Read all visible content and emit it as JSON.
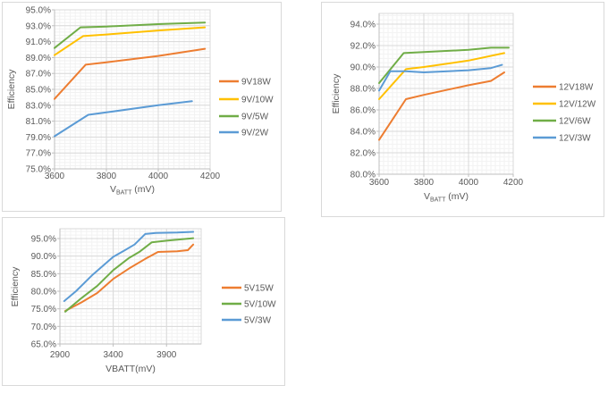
{
  "colors": {
    "orange": "#ED7D31",
    "gold": "#FFC000",
    "green": "#70AD47",
    "blue": "#5B9BD5",
    "grid_major": "#D9D9D9",
    "grid_minor": "#F2F2F2",
    "axis_line": "#BFBFBF",
    "text": "#595959",
    "panel_border": "#D9D9D9"
  },
  "chart_data": [
    {
      "type": "line",
      "id": "9v-efficiency",
      "ylabel": "Efficiency",
      "xlabel": {
        "pre": "V",
        "sub": "BATT",
        "post": " (mV)"
      },
      "xlim": [
        3600,
        4200
      ],
      "ylim": [
        75,
        95
      ],
      "x_ticks": [
        3600,
        3800,
        4000,
        4200
      ],
      "x_tick_labels": [
        "3600",
        "3800",
        "4000",
        "4200"
      ],
      "y_ticks": [
        95,
        93,
        91,
        89,
        87,
        85,
        83,
        81,
        79,
        77,
        75
      ],
      "y_tick_labels": [
        "95.0%",
        "93.0%",
        "91.0%",
        "89.0%",
        "87.0%",
        "85.0%",
        "83.0%",
        "81.0%",
        "79.0%",
        "77.0%",
        "75.0%"
      ],
      "grid": true,
      "legend_position": "right",
      "series": [
        {
          "name": "9V18W",
          "color": "#ED7D31",
          "points": [
            [
              3600,
              83.8
            ],
            [
              3720,
              88.1
            ],
            [
              3800,
              88.4
            ],
            [
              4000,
              89.2
            ],
            [
              4180,
              90.1
            ]
          ]
        },
        {
          "name": "9V/10W",
          "color": "#FFC000",
          "points": [
            [
              3600,
              89.3
            ],
            [
              3710,
              91.7
            ],
            [
              3800,
              91.9
            ],
            [
              4000,
              92.4
            ],
            [
              4180,
              92.8
            ]
          ]
        },
        {
          "name": "9V/5W",
          "color": "#70AD47",
          "points": [
            [
              3600,
              90.2
            ],
            [
              3700,
              92.8
            ],
            [
              3800,
              92.9
            ],
            [
              4000,
              93.2
            ],
            [
              4180,
              93.4
            ]
          ]
        },
        {
          "name": "9V/2W",
          "color": "#5B9BD5",
          "points": [
            [
              3600,
              79.1
            ],
            [
              3730,
              81.8
            ],
            [
              3800,
              82.1
            ],
            [
              4000,
              83.0
            ],
            [
              4130,
              83.5
            ]
          ]
        }
      ]
    },
    {
      "type": "line",
      "id": "12v-efficiency",
      "ylabel": "Efficiency",
      "xlabel": {
        "pre": "V",
        "sub": "BATT",
        "post": " (mV)"
      },
      "xlim": [
        3600,
        4200
      ],
      "ylim": [
        80,
        95
      ],
      "x_ticks": [
        3600,
        3800,
        4000,
        4200
      ],
      "x_tick_labels": [
        "3600",
        "3800",
        "4000",
        "4200"
      ],
      "y_ticks": [
        94,
        92,
        90,
        88,
        86,
        84,
        82,
        80
      ],
      "y_tick_labels": [
        "94.0%",
        "92.0%",
        "90.0%",
        "88.0%",
        "86.0%",
        "84.0%",
        "82.0%",
        "80.0%"
      ],
      "grid": true,
      "legend_position": "right",
      "series": [
        {
          "name": "12V18W",
          "color": "#ED7D31",
          "points": [
            [
              3600,
              83.2
            ],
            [
              3720,
              87.0
            ],
            [
              3800,
              87.4
            ],
            [
              4000,
              88.3
            ],
            [
              4100,
              88.7
            ],
            [
              4160,
              89.5
            ]
          ]
        },
        {
          "name": "12V/12W",
          "color": "#FFC000",
          "points": [
            [
              3600,
              87.0
            ],
            [
              3720,
              89.8
            ],
            [
              3800,
              90.0
            ],
            [
              4000,
              90.6
            ],
            [
              4160,
              91.3
            ]
          ]
        },
        {
          "name": "12V/6W",
          "color": "#70AD47",
          "points": [
            [
              3600,
              88.5
            ],
            [
              3710,
              91.3
            ],
            [
              3800,
              91.4
            ],
            [
              4000,
              91.6
            ],
            [
              4100,
              91.8
            ],
            [
              4180,
              91.8
            ]
          ]
        },
        {
          "name": "12V/3W",
          "color": "#5B9BD5",
          "points": [
            [
              3600,
              87.8
            ],
            [
              3650,
              89.6
            ],
            [
              3720,
              89.6
            ],
            [
              3800,
              89.5
            ],
            [
              4000,
              89.7
            ],
            [
              4100,
              89.9
            ],
            [
              4150,
              90.2
            ]
          ]
        }
      ]
    },
    {
      "type": "line",
      "id": "5v-efficiency",
      "ylabel": "Efficiency",
      "xlabel": {
        "pre": "VBATT(mV)",
        "sub": "",
        "post": ""
      },
      "xlim": [
        2900,
        4225
      ],
      "ylim": [
        65,
        97.8
      ],
      "x_ticks": [
        2900,
        3400,
        3900
      ],
      "x_tick_labels": [
        "2900",
        "3400",
        "3900"
      ],
      "y_ticks": [
        95,
        90,
        85,
        80,
        75,
        70,
        65
      ],
      "y_tick_labels": [
        "95.0%",
        "90.0%",
        "85.0%",
        "80.0%",
        "75.0%",
        "70.0%",
        "65.0%"
      ],
      "grid": true,
      "legend_position": "right",
      "series": [
        {
          "name": "5V15W",
          "color": "#ED7D31",
          "points": [
            [
              2950,
              74.4
            ],
            [
              3100,
              76.8
            ],
            [
              3250,
              79.5
            ],
            [
              3400,
              83.5
            ],
            [
              3550,
              86.5
            ],
            [
              3700,
              89.2
            ],
            [
              3820,
              91.2
            ],
            [
              4000,
              91.4
            ],
            [
              4100,
              91.7
            ],
            [
              4150,
              93.3
            ]
          ]
        },
        {
          "name": "5V/10W",
          "color": "#70AD47",
          "points": [
            [
              2950,
              74.2
            ],
            [
              3100,
              78.0
            ],
            [
              3250,
              81.5
            ],
            [
              3400,
              86.0
            ],
            [
              3550,
              89.5
            ],
            [
              3650,
              91.3
            ],
            [
              3760,
              93.9
            ],
            [
              3900,
              94.4
            ],
            [
              4150,
              95.1
            ]
          ]
        },
        {
          "name": "5V/3W",
          "color": "#5B9BD5",
          "points": [
            [
              2940,
              77.2
            ],
            [
              3050,
              80.0
            ],
            [
              3200,
              84.5
            ],
            [
              3400,
              89.8
            ],
            [
              3500,
              91.5
            ],
            [
              3600,
              93.3
            ],
            [
              3700,
              96.3
            ],
            [
              3800,
              96.6
            ],
            [
              4000,
              96.7
            ],
            [
              4150,
              96.9
            ]
          ]
        }
      ]
    }
  ]
}
